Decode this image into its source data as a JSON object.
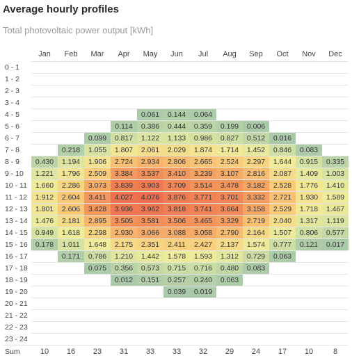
{
  "title": "Average hourly profiles",
  "subtitle": "Total photovoltaic power output [kWh]",
  "months": [
    "Jan",
    "Feb",
    "Mar",
    "Apr",
    "May",
    "Jun",
    "Jul",
    "Aug",
    "Sep",
    "Oct",
    "Nov",
    "Dec"
  ],
  "hours": [
    "0 - 1",
    "1 - 2",
    "2 - 3",
    "3 - 4",
    "4 - 5",
    "5 - 6",
    "6 - 7",
    "7 - 8",
    "8 - 9",
    "9 - 10",
    "10 - 11",
    "11 - 12",
    "12 - 13",
    "13 - 14",
    "14 - 15",
    "15 - 16",
    "16 - 17",
    "17 - 18",
    "18 - 19",
    "19 - 20",
    "20 - 21",
    "21 - 22",
    "22 - 23",
    "23 - 24"
  ],
  "values": [
    [
      "",
      "",
      "",
      "",
      "",
      "",
      "",
      "",
      "",
      "",
      "",
      ""
    ],
    [
      "",
      "",
      "",
      "",
      "",
      "",
      "",
      "",
      "",
      "",
      "",
      ""
    ],
    [
      "",
      "",
      "",
      "",
      "",
      "",
      "",
      "",
      "",
      "",
      "",
      ""
    ],
    [
      "",
      "",
      "",
      "",
      "",
      "",
      "",
      "",
      "",
      "",
      "",
      ""
    ],
    [
      "",
      "",
      "",
      "",
      "0.061",
      "0.144",
      "0.064",
      "",
      "",
      "",
      "",
      ""
    ],
    [
      "",
      "",
      "",
      "0.114",
      "0.386",
      "0.444",
      "0.359",
      "0.199",
      "0.006",
      "",
      "",
      ""
    ],
    [
      "",
      "",
      "0.099",
      "0.817",
      "1.122",
      "1.133",
      "0.986",
      "0.827",
      "0.512",
      "0.016",
      "",
      ""
    ],
    [
      "",
      "0.218",
      "1.055",
      "1.807",
      "2.061",
      "2.029",
      "1.874",
      "1.714",
      "1.452",
      "0.846",
      "0.083",
      ""
    ],
    [
      "0.430",
      "1.194",
      "1.906",
      "2.724",
      "2.934",
      "2.806",
      "2.665",
      "2.524",
      "2.297",
      "1.644",
      "0.915",
      "0.335"
    ],
    [
      "1.221",
      "1.796",
      "2.509",
      "3.384",
      "3.537",
      "3.410",
      "3.239",
      "3.107",
      "2.816",
      "2.087",
      "1.409",
      "1.003"
    ],
    [
      "1.660",
      "2.286",
      "3.073",
      "3.839",
      "3.903",
      "3.709",
      "3.514",
      "3.478",
      "3.182",
      "2.528",
      "1.776",
      "1.410"
    ],
    [
      "1.912",
      "2.604",
      "3.411",
      "4.027",
      "4.076",
      "3.876",
      "3.771",
      "3.701",
      "3.332",
      "2.721",
      "1.930",
      "1.589"
    ],
    [
      "1.801",
      "2.606",
      "3.428",
      "3.936",
      "3.962",
      "3.818",
      "3.741",
      "3.664",
      "3.158",
      "2.529",
      "1.718",
      "1.467"
    ],
    [
      "1.476",
      "2.181",
      "2.895",
      "3.505",
      "3.581",
      "3.506",
      "3.465",
      "3.329",
      "2.719",
      "2.040",
      "1.317",
      "1.119"
    ],
    [
      "0.949",
      "1.618",
      "2.298",
      "2.930",
      "3.066",
      "3.088",
      "3.058",
      "2.790",
      "2.164",
      "1.507",
      "0.806",
      "0.577"
    ],
    [
      "0.178",
      "1.011",
      "1.648",
      "2.175",
      "2.351",
      "2.411",
      "2.427",
      "2.137",
      "1.574",
      "0.777",
      "0.121",
      "0.017"
    ],
    [
      "",
      "0.171",
      "0.786",
      "1.210",
      "1.442",
      "1.578",
      "1.593",
      "1.312",
      "0.729",
      "0.063",
      "",
      ""
    ],
    [
      "",
      "",
      "0.075",
      "0.356",
      "0.573",
      "0.715",
      "0.716",
      "0.480",
      "0.083",
      "",
      "",
      ""
    ],
    [
      "",
      "",
      "",
      "0.012",
      "0.151",
      "0.257",
      "0.240",
      "0.063",
      "",
      "",
      "",
      ""
    ],
    [
      "",
      "",
      "",
      "",
      "",
      "0.039",
      "0.019",
      "",
      "",
      "",
      "",
      ""
    ],
    [
      "",
      "",
      "",
      "",
      "",
      "",
      "",
      "",
      "",
      "",
      "",
      ""
    ],
    [
      "",
      "",
      "",
      "",
      "",
      "",
      "",
      "",
      "",
      "",
      "",
      ""
    ],
    [
      "",
      "",
      "",
      "",
      "",
      "",
      "",
      "",
      "",
      "",
      "",
      ""
    ],
    [
      "",
      "",
      "",
      "",
      "",
      "",
      "",
      "",
      "",
      "",
      "",
      ""
    ]
  ],
  "sum_label": "Sum",
  "sums": [
    "10",
    "16",
    "23",
    "31",
    "33",
    "33",
    "32",
    "29",
    "24",
    "17",
    "10",
    "8"
  ],
  "colors": {
    "scale": [
      "#a9c9a9",
      "#cfe0a4",
      "#f0ec9a",
      "#f9cf7c",
      "#f4a063",
      "#ee6e4e"
    ]
  }
}
